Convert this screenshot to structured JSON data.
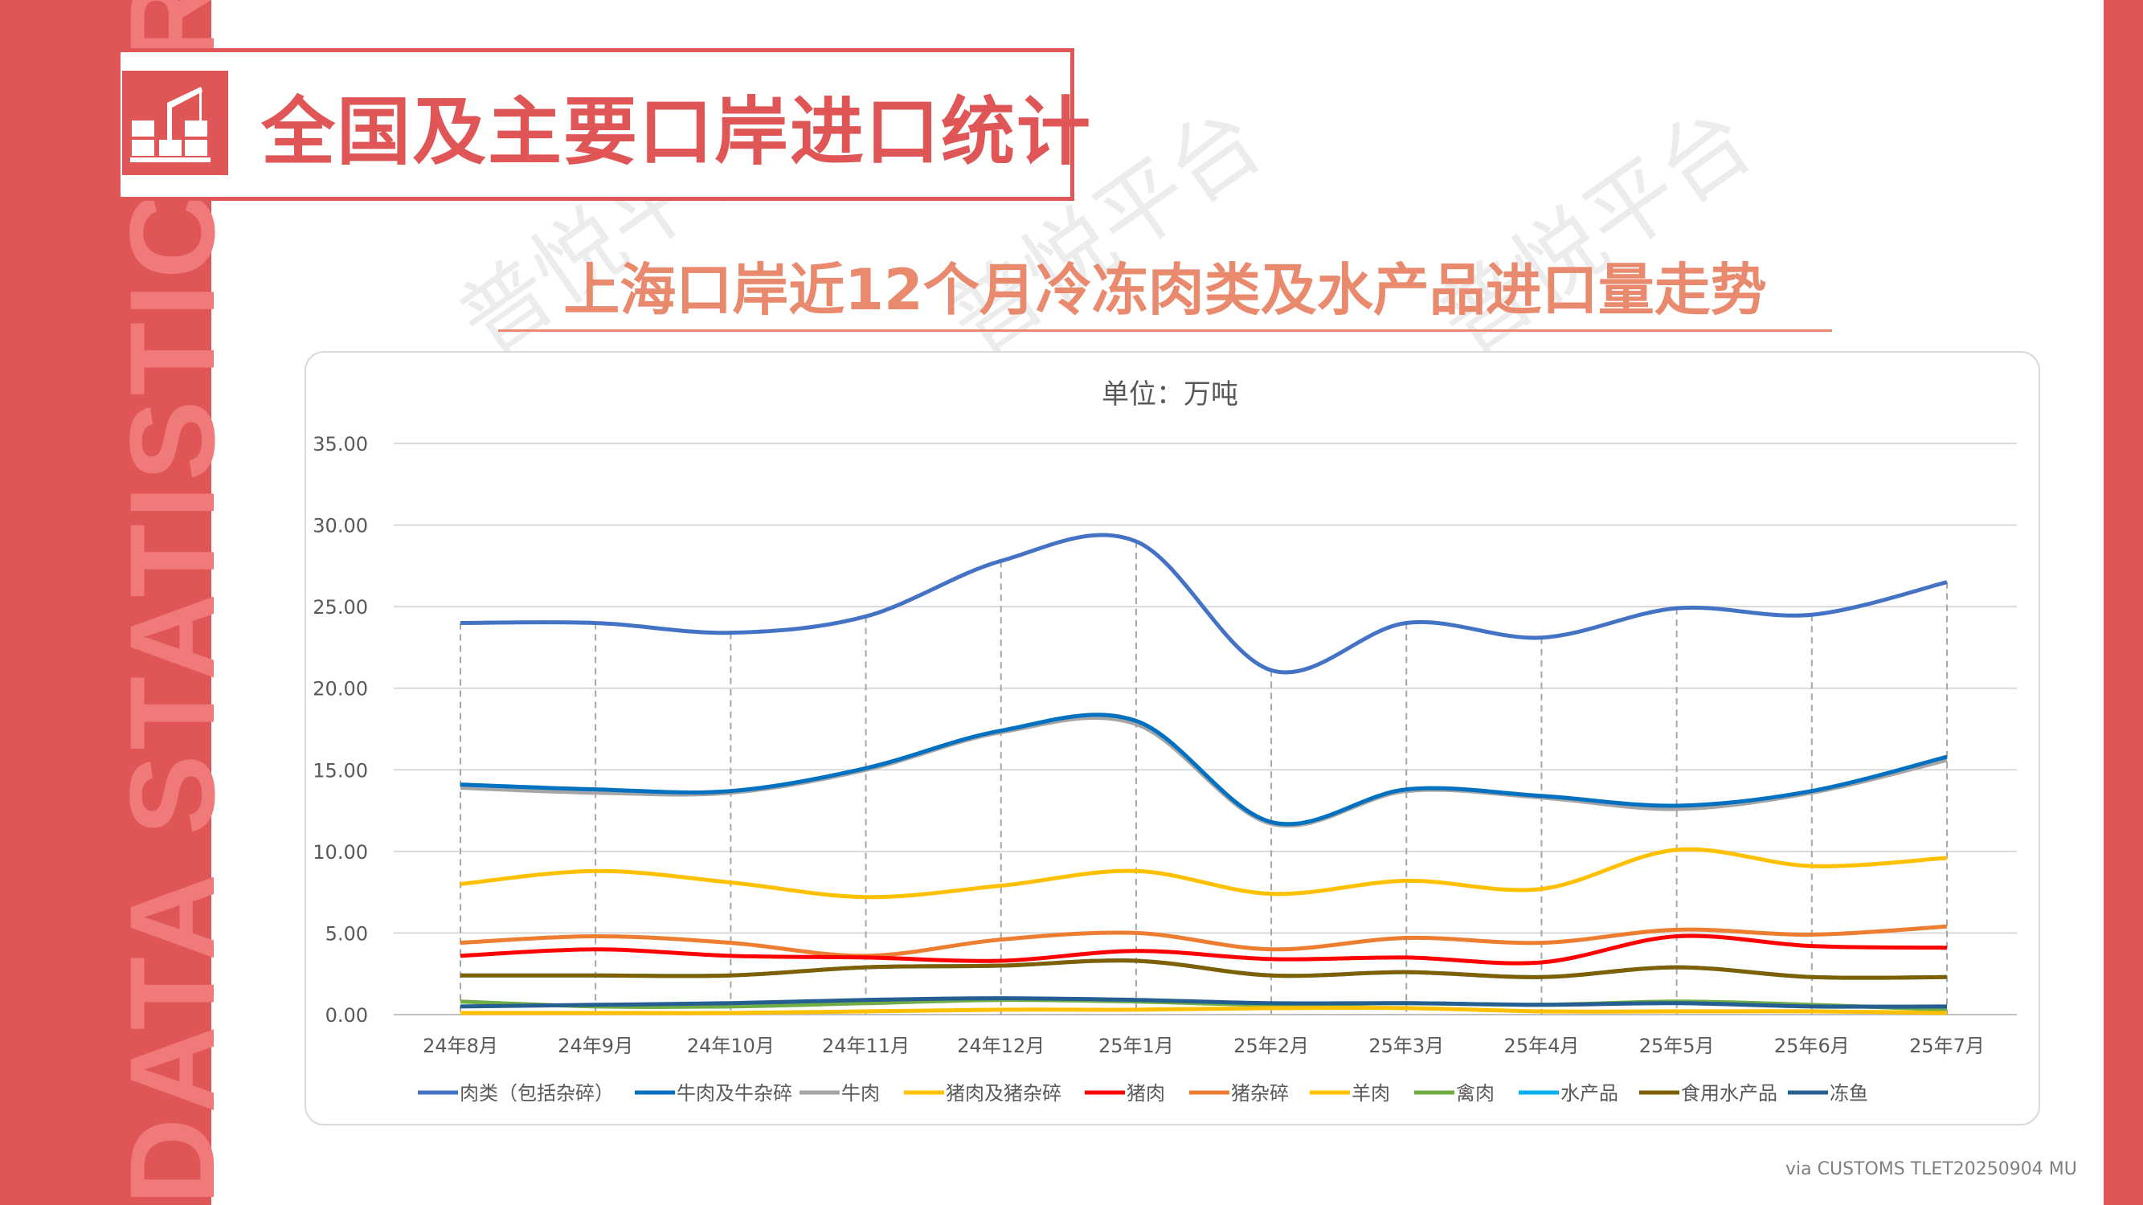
{
  "side_text": "DATA STATISTICS REPORT",
  "header": {
    "title": "全国及主要口岸进口统计"
  },
  "subtitle": "上海口岸近12个月冷冻肉类及水产品进口量走势",
  "footer": "via CUSTOMS TLET20250904 MU",
  "watermark": "普悦平台",
  "colors": {
    "accent": "#e05656",
    "subtitle": "#e98a6e"
  },
  "chart_data": {
    "type": "line",
    "title": "单位：万吨",
    "xlabel": "",
    "ylabel": "",
    "ylim": [
      0,
      35
    ],
    "yticks": [
      "0.00",
      "5.00",
      "10.00",
      "15.00",
      "20.00",
      "25.00",
      "30.00",
      "35.00"
    ],
    "grid": true,
    "legend": "bottom",
    "categories": [
      "24年8月",
      "24年9月",
      "24年10月",
      "24年11月",
      "24年12月",
      "25年1月",
      "25年2月",
      "25年3月",
      "25年4月",
      "25年5月",
      "25年6月",
      "25年7月"
    ],
    "series": [
      {
        "name": "肉类（包括杂碎）",
        "color": "#4472C4",
        "values": [
          24.0,
          24.0,
          23.4,
          24.4,
          27.8,
          29.0,
          21.1,
          24.0,
          23.1,
          24.9,
          24.5,
          26.5
        ]
      },
      {
        "name": "牛肉及牛杂碎",
        "color": "#0070C0",
        "values": [
          14.1,
          13.8,
          13.7,
          15.1,
          17.4,
          18.0,
          11.8,
          13.8,
          13.4,
          12.8,
          13.7,
          15.8
        ]
      },
      {
        "name": "牛肉",
        "color": "#A5A5A5",
        "values": [
          13.9,
          13.6,
          13.6,
          15.0,
          17.3,
          17.8,
          11.7,
          13.7,
          13.3,
          12.6,
          13.6,
          15.6
        ]
      },
      {
        "name": "猪肉及猪杂碎",
        "color": "#FFC000",
        "values": [
          8.0,
          8.8,
          8.1,
          7.2,
          7.9,
          8.8,
          7.4,
          8.2,
          7.7,
          10.1,
          9.1,
          9.6
        ]
      },
      {
        "name": "猪肉",
        "color": "#FF0000",
        "values": [
          3.6,
          4.0,
          3.6,
          3.5,
          3.3,
          3.9,
          3.4,
          3.5,
          3.2,
          4.8,
          4.2,
          4.1
        ]
      },
      {
        "name": "猪杂碎",
        "color": "#ED7D31",
        "values": [
          4.4,
          4.8,
          4.4,
          3.6,
          4.6,
          5.0,
          4.0,
          4.7,
          4.4,
          5.2,
          4.9,
          5.4
        ]
      },
      {
        "name": "羊肉",
        "color": "#FFC000",
        "values": [
          0.1,
          0.1,
          0.1,
          0.2,
          0.3,
          0.3,
          0.4,
          0.4,
          0.2,
          0.2,
          0.2,
          0.1
        ]
      },
      {
        "name": "禽肉",
        "color": "#70AD47",
        "values": [
          0.8,
          0.5,
          0.5,
          0.7,
          0.9,
          0.8,
          0.6,
          0.7,
          0.6,
          0.8,
          0.6,
          0.3
        ]
      },
      {
        "name": "水产品",
        "color": "#00B0F0",
        "values": [
          2.4,
          2.4,
          2.4,
          2.9,
          3.0,
          3.3,
          2.4,
          2.6,
          2.3,
          2.9,
          2.3,
          2.3
        ]
      },
      {
        "name": "食用水产品",
        "color": "#7F6000",
        "values": [
          2.4,
          2.4,
          2.4,
          2.9,
          3.0,
          3.3,
          2.4,
          2.6,
          2.3,
          2.9,
          2.3,
          2.3
        ]
      },
      {
        "name": "冻鱼",
        "color": "#255E91",
        "values": [
          0.5,
          0.6,
          0.7,
          0.9,
          1.0,
          0.9,
          0.7,
          0.7,
          0.6,
          0.7,
          0.5,
          0.5
        ]
      }
    ]
  }
}
